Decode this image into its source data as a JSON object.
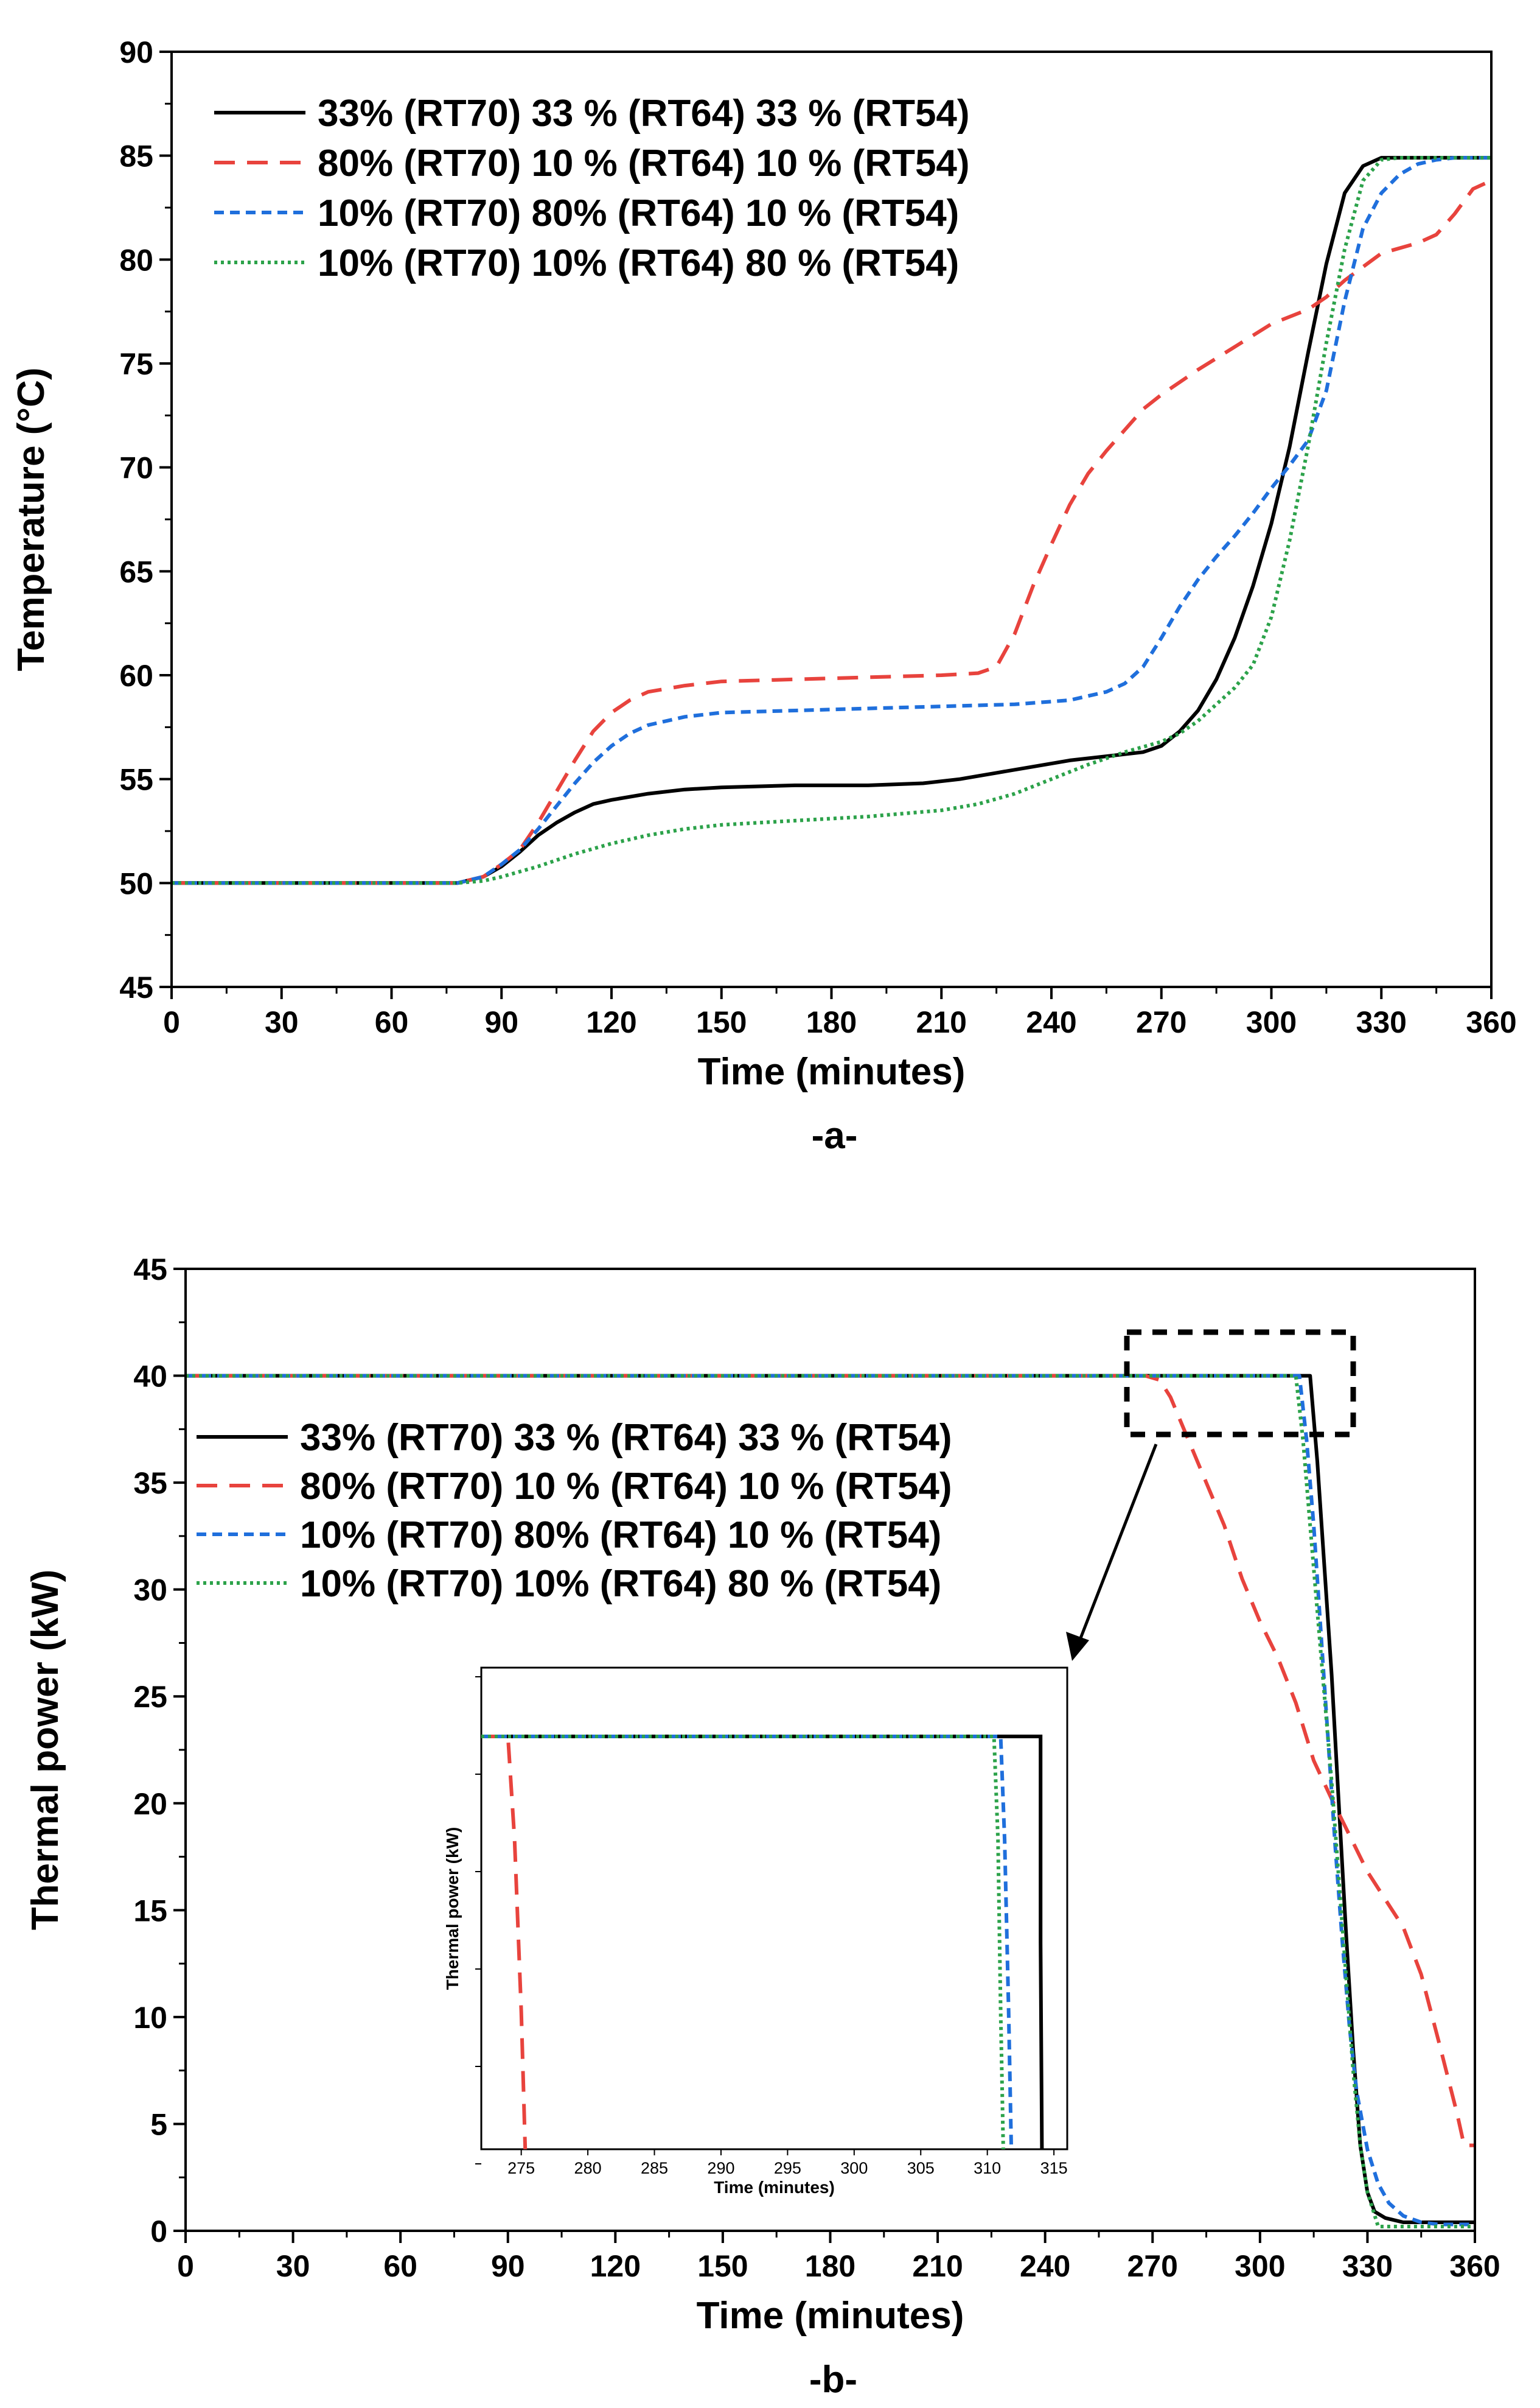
{
  "figure": {
    "colors": {
      "axis": "#000000",
      "background": "#ffffff"
    }
  },
  "legend_series": [
    {
      "name": "33% (RT70) 33 % (RT64) 33 % (RT54)",
      "color": "#000000",
      "dash": "solid"
    },
    {
      "name": "80% (RT70) 10 % (RT64) 10 % (RT54)",
      "color": "#e8433d",
      "dash": "dashed"
    },
    {
      "name": "10% (RT70) 80% (RT64) 10 % (RT54)",
      "color": "#1f6fdc",
      "dash": "short-dashed"
    },
    {
      "name": "10% (RT70) 10% (RT64) 80 % (RT54)",
      "color": "#2ca24a",
      "dash": "dotted"
    }
  ],
  "chart_data": [
    {
      "id": "a",
      "type": "line",
      "panel_label": "-a-",
      "xlabel": "Time (minutes)",
      "ylabel": "Temperature (°C)",
      "xlim": [
        0,
        360
      ],
      "ylim": [
        45,
        90
      ],
      "xticks": [
        0,
        30,
        60,
        90,
        120,
        150,
        180,
        210,
        240,
        270,
        300,
        330,
        360
      ],
      "yticks": [
        45,
        50,
        55,
        60,
        65,
        70,
        75,
        80,
        85,
        90
      ],
      "legend_position": "top-left",
      "series": [
        {
          "name": "33% (RT70) 33 % (RT64) 33 % (RT54)",
          "x": [
            0,
            78,
            85,
            90,
            95,
            100,
            105,
            110,
            115,
            120,
            130,
            140,
            150,
            170,
            190,
            205,
            215,
            225,
            235,
            245,
            255,
            265,
            270,
            275,
            280,
            285,
            290,
            295,
            300,
            305,
            310,
            315,
            320,
            325,
            330,
            335,
            360
          ],
          "y": [
            50,
            50,
            50.3,
            50.8,
            51.5,
            52.3,
            52.9,
            53.4,
            53.8,
            54,
            54.3,
            54.5,
            54.6,
            54.7,
            54.7,
            54.8,
            55,
            55.3,
            55.6,
            55.9,
            56.1,
            56.3,
            56.6,
            57.3,
            58.3,
            59.8,
            61.8,
            64.3,
            67.3,
            71,
            75.5,
            79.8,
            83.2,
            84.5,
            84.9,
            84.9,
            84.9
          ]
        },
        {
          "name": "80% (RT70) 10 % (RT64) 10 % (RT54)",
          "x": [
            0,
            78,
            85,
            90,
            95,
            100,
            105,
            110,
            115,
            120,
            125,
            130,
            140,
            150,
            170,
            190,
            210,
            220,
            225,
            230,
            235,
            240,
            245,
            250,
            255,
            260,
            265,
            270,
            280,
            290,
            300,
            310,
            315,
            320,
            330,
            340,
            345,
            350,
            355,
            360
          ],
          "y": [
            50,
            50,
            50.3,
            50.9,
            51.6,
            52.9,
            54.4,
            55.9,
            57.3,
            58.2,
            58.8,
            59.2,
            59.5,
            59.7,
            59.8,
            59.9,
            60,
            60.1,
            60.4,
            62,
            64.3,
            66.3,
            68.2,
            69.7,
            70.8,
            71.8,
            72.8,
            73.5,
            74.7,
            75.8,
            76.9,
            77.6,
            78.2,
            79,
            80.3,
            80.8,
            81.2,
            82.2,
            83.4,
            83.8
          ]
        },
        {
          "name": "10% (RT70) 80% (RT64) 10 % (RT54)",
          "x": [
            0,
            78,
            85,
            90,
            95,
            100,
            105,
            110,
            115,
            120,
            125,
            130,
            140,
            150,
            170,
            190,
            210,
            230,
            245,
            255,
            260,
            265,
            270,
            275,
            280,
            285,
            290,
            295,
            300,
            305,
            310,
            315,
            320,
            325,
            330,
            335,
            340,
            345,
            350,
            360
          ],
          "y": [
            50,
            50,
            50.3,
            50.9,
            51.6,
            52.6,
            53.7,
            54.8,
            55.8,
            56.6,
            57.2,
            57.6,
            58,
            58.2,
            58.3,
            58.4,
            58.5,
            58.6,
            58.8,
            59.2,
            59.6,
            60.4,
            61.8,
            63.3,
            64.6,
            65.7,
            66.7,
            67.8,
            69,
            70.1,
            71.3,
            73.7,
            78,
            81.5,
            83.2,
            84.1,
            84.6,
            84.8,
            84.9,
            84.9
          ]
        },
        {
          "name": "10% (RT70) 10% (RT64) 80 % (RT54)",
          "x": [
            0,
            78,
            85,
            90,
            100,
            110,
            120,
            130,
            140,
            150,
            170,
            190,
            210,
            220,
            230,
            240,
            250,
            260,
            270,
            275,
            280,
            285,
            290,
            295,
            300,
            305,
            310,
            315,
            320,
            325,
            330,
            335,
            360
          ],
          "y": [
            50,
            50,
            50.1,
            50.3,
            50.8,
            51.4,
            51.9,
            52.3,
            52.6,
            52.8,
            53,
            53.2,
            53.5,
            53.8,
            54.3,
            55,
            55.7,
            56.3,
            56.8,
            57.2,
            57.8,
            58.6,
            59.4,
            60.5,
            62.8,
            66.5,
            71,
            76,
            80.5,
            83.8,
            84.8,
            84.9,
            84.9
          ]
        }
      ]
    },
    {
      "id": "b",
      "type": "line",
      "panel_label": "-b-",
      "xlabel": "Time (minutes)",
      "ylabel": "Thermal power (kW)",
      "xlim": [
        0,
        360
      ],
      "ylim": [
        0,
        45
      ],
      "xticks": [
        0,
        30,
        60,
        90,
        120,
        150,
        180,
        210,
        240,
        270,
        300,
        330,
        360
      ],
      "yticks": [
        0,
        5,
        10,
        15,
        20,
        25,
        30,
        35,
        40,
        45
      ],
      "legend_position": "center-left",
      "series": [
        {
          "name": "33% (RT70) 33 % (RT64) 33 % (RT54)",
          "x": [
            0,
            314,
            316,
            318,
            320,
            322,
            324,
            326,
            328,
            330,
            332,
            335,
            340,
            350,
            360
          ],
          "y": [
            40,
            40,
            36,
            31,
            26,
            20,
            14,
            8.5,
            4,
            1.8,
            0.9,
            0.6,
            0.4,
            0.4,
            0.4
          ]
        },
        {
          "name": "80% (RT70) 10 % (RT64) 10 % (RT54)",
          "x": [
            0,
            268,
            272,
            275,
            280,
            285,
            290,
            295,
            300,
            305,
            310,
            315,
            320,
            325,
            330,
            335,
            340,
            345,
            350,
            355,
            357,
            360
          ],
          "y": [
            40,
            40,
            39.8,
            39,
            37,
            35,
            33,
            30.5,
            28.5,
            26.8,
            24.7,
            22,
            20.2,
            18.5,
            16.8,
            15.5,
            14.2,
            12,
            8.8,
            5.5,
            4,
            4
          ]
        },
        {
          "name": "10% (RT70) 80% (RT64) 10 % (RT54)",
          "x": [
            0,
            311,
            313,
            315,
            317,
            319,
            321,
            323,
            325,
            327,
            330,
            333,
            336,
            340,
            345,
            350,
            360
          ],
          "y": [
            40,
            40,
            37,
            33,
            28,
            23,
            18,
            13.5,
            9.5,
            6.5,
            3.8,
            2.2,
            1.3,
            0.7,
            0.4,
            0.3,
            0.3
          ]
        },
        {
          "name": "10% (RT70) 10% (RT64) 80 % (RT54)",
          "x": [
            0,
            310,
            312,
            314,
            316,
            318,
            320,
            322,
            324,
            326,
            328,
            330,
            333,
            340,
            360
          ],
          "y": [
            40,
            40,
            37,
            33,
            29,
            25,
            21,
            16.5,
            12,
            7.5,
            4,
            1.8,
            0.2,
            0.2,
            0.2
          ]
        }
      ],
      "inset": {
        "xlabel": "Time (minutes)",
        "ylabel": "Thermal power (kW)",
        "xlim": [
          272,
          316
        ],
        "ylim": [
          38.8,
          40.2
        ],
        "xticks": [
          275,
          280,
          285,
          290,
          295,
          300,
          305,
          310,
          315
        ],
        "series": [
          {
            "name": "33% (RT70) 33 % (RT64) 33 % (RT54)",
            "x": [
              272,
              314,
              314.0,
              314.1
            ],
            "y": [
              40,
              40,
              39.4,
              38.8
            ]
          },
          {
            "name": "80% (RT70) 10 % (RT64) 10 % (RT54)",
            "x": [
              272,
              274,
              274.5,
              275,
              275.3
            ],
            "y": [
              40,
              40,
              39.7,
              39.2,
              38.8
            ]
          },
          {
            "name": "10% (RT70) 80% (RT64) 10 % (RT54)",
            "x": [
              272,
              311,
              311.3,
              311.6,
              311.8
            ],
            "y": [
              40,
              40,
              39.7,
              39.2,
              38.8
            ]
          },
          {
            "name": "10% (RT70) 10% (RT64) 80 % (RT54)",
            "x": [
              272,
              310.5,
              310.8,
              311.0,
              311.2
            ],
            "y": [
              40,
              40,
              39.7,
              39.2,
              38.8
            ]
          }
        ]
      }
    }
  ]
}
